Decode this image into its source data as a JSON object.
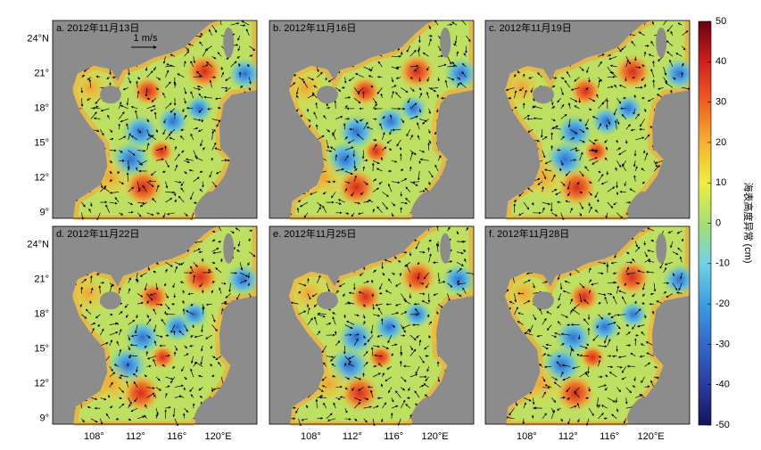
{
  "panels": [
    {
      "label": "a. 2012年11月13日"
    },
    {
      "label": "b. 2012年11月16日"
    },
    {
      "label": "c. 2012年11月19日"
    },
    {
      "label": "d. 2012年11月22日"
    },
    {
      "label": "e. 2012年11月25日"
    },
    {
      "label": "f. 2012年11月28日"
    }
  ],
  "x_tick_labels": [
    "108°",
    "112°",
    "116°",
    "120°E"
  ],
  "y_tick_labels": [
    "24°N",
    "21°",
    "18°",
    "15°",
    "12°",
    "9°"
  ],
  "scale_label": "1 m/s",
  "colorbar": {
    "label": "海表高度异常 (cm)",
    "lim": [
      -50,
      50
    ],
    "ticks": [
      50,
      40,
      30,
      20,
      10,
      0,
      -10,
      -20,
      -30,
      -40,
      -50
    ]
  }
}
